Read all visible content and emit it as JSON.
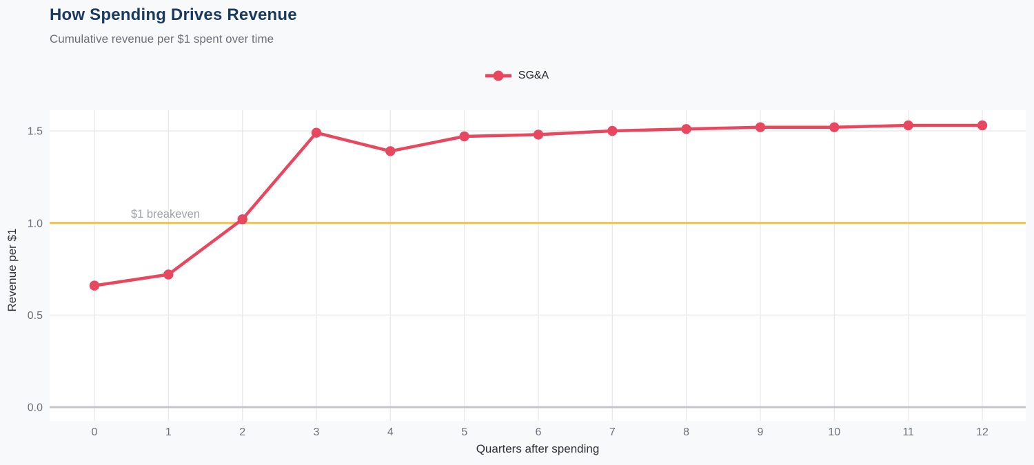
{
  "header": {
    "title": "How Spending Drives Revenue",
    "subtitle": "Cumulative revenue per $1 spent over time"
  },
  "legend": {
    "position": "top-center",
    "items": [
      {
        "label": "SG&A",
        "color": "#e8485f"
      }
    ]
  },
  "chart_data": {
    "type": "line",
    "title": "How Spending Drives Revenue",
    "subtitle": "Cumulative revenue per $1 spent over time",
    "xlabel": "Quarters after spending",
    "ylabel": "Revenue per $1",
    "x": [
      0,
      1,
      2,
      3,
      4,
      5,
      6,
      7,
      8,
      9,
      10,
      11,
      12
    ],
    "series": [
      {
        "name": "SG&A",
        "color": "#e8485f",
        "values": [
          0.66,
          0.72,
          1.02,
          1.49,
          1.39,
          1.47,
          1.48,
          1.5,
          1.51,
          1.52,
          1.52,
          1.53,
          1.53
        ]
      }
    ],
    "x_ticks": [
      0,
      1,
      2,
      3,
      4,
      5,
      6,
      7,
      8,
      9,
      10,
      11,
      12
    ],
    "y_ticks": [
      0.0,
      0.5,
      1.0,
      1.5
    ],
    "ylim": [
      -0.08,
      1.61
    ],
    "grid": true,
    "reference_line": {
      "y": 1.0,
      "label": "$1 breakeven",
      "color": "#f2c249"
    },
    "colors": {
      "plot_background": "#ffffff",
      "page_background": "#f8f9fb",
      "grid_line": "#e9eaec",
      "zero_line": "#c4c6c9",
      "tick_label": "#6a7078",
      "axis_title": "#2c3037",
      "title": "#1a3a60",
      "subtitle": "#6b7077",
      "reference_label": "#9da2a8"
    }
  }
}
